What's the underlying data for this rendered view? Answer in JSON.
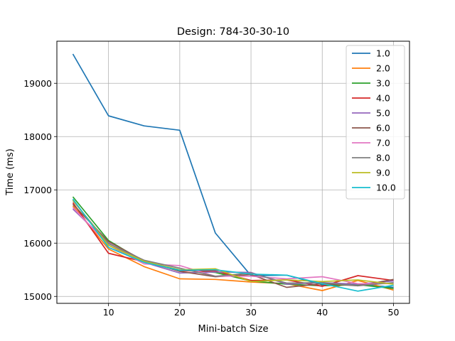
{
  "chart_data": {
    "type": "line",
    "title": "Design: 784-30-30-10",
    "xlabel": "Mini-batch Size",
    "ylabel": "Time (ms)",
    "xlim": [
      2.75,
      52.25
    ],
    "ylim": [
      14870,
      19790
    ],
    "xticks": [
      10,
      20,
      30,
      40,
      50
    ],
    "yticks": [
      15000,
      16000,
      17000,
      18000,
      19000
    ],
    "grid": true,
    "legend_position": "top-right",
    "x": [
      5,
      10,
      15,
      20,
      25,
      30,
      35,
      40,
      45,
      50
    ],
    "series": [
      {
        "name": "1.0",
        "color": "#1f77b4",
        "values": [
          19550,
          18390,
          18200,
          18120,
          16190,
          15390,
          15400,
          15220,
          15230,
          15170
        ]
      },
      {
        "name": "2.0",
        "color": "#ff7f0e",
        "values": [
          16700,
          15890,
          15560,
          15330,
          15320,
          15270,
          15240,
          15110,
          15300,
          15120
        ]
      },
      {
        "name": "3.0",
        "color": "#2ca02c",
        "values": [
          16870,
          16050,
          15650,
          15500,
          15450,
          15290,
          15230,
          15200,
          15220,
          15150
        ]
      },
      {
        "name": "4.0",
        "color": "#d62728",
        "values": [
          16760,
          15810,
          15650,
          15480,
          15480,
          15300,
          15310,
          15190,
          15390,
          15300
        ]
      },
      {
        "name": "5.0",
        "color": "#9467bd",
        "values": [
          16640,
          16000,
          15640,
          15440,
          15460,
          15450,
          15230,
          15260,
          15230,
          15290
        ]
      },
      {
        "name": "6.0",
        "color": "#8c564b",
        "values": [
          16730,
          16030,
          15670,
          15470,
          15370,
          15410,
          15170,
          15240,
          15200,
          15320
        ]
      },
      {
        "name": "7.0",
        "color": "#e377c2",
        "values": [
          16670,
          15960,
          15610,
          15580,
          15380,
          15380,
          15330,
          15370,
          15240,
          15240
        ]
      },
      {
        "name": "8.0",
        "color": "#7f7f7f",
        "values": [
          16800,
          15990,
          15680,
          15530,
          15380,
          15440,
          15250,
          15260,
          15200,
          15260
        ]
      },
      {
        "name": "9.0",
        "color": "#bcbd22",
        "values": [
          16810,
          15960,
          15660,
          15500,
          15520,
          15280,
          15310,
          15280,
          15310,
          15230
        ]
      },
      {
        "name": "10.0",
        "color": "#17becf",
        "values": [
          16830,
          15920,
          15640,
          15490,
          15500,
          15420,
          15400,
          15240,
          15100,
          15210
        ]
      }
    ]
  }
}
